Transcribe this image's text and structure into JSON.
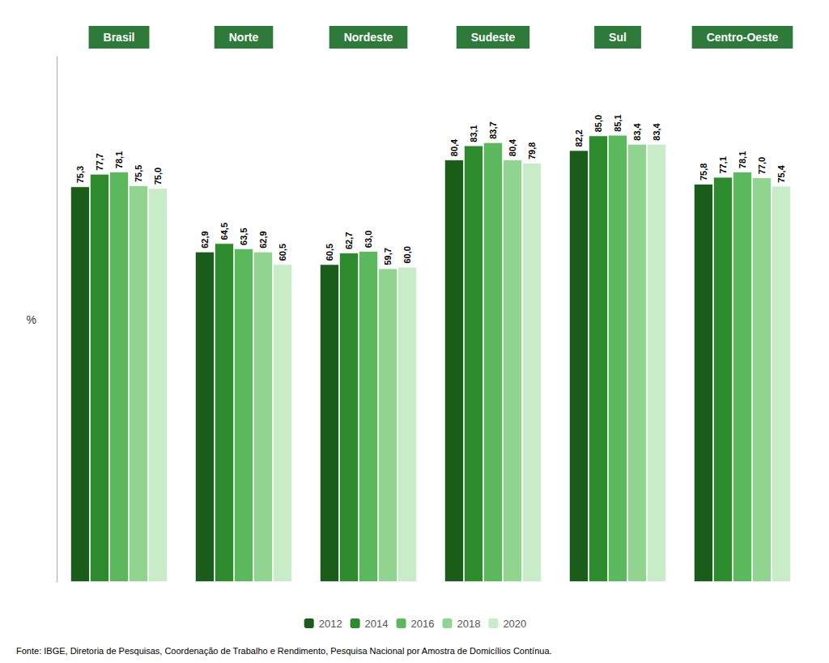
{
  "chart_data": {
    "type": "bar",
    "categories": [
      "Brasil",
      "Norte",
      "Nordeste",
      "Sudeste",
      "Sul",
      "Centro-Oeste"
    ],
    "series": [
      {
        "name": "2012",
        "color": "#1a5c1a",
        "values": [
          75.3,
          62.9,
          60.5,
          80.4,
          82.2,
          75.8
        ],
        "value_labels": [
          "75,3",
          "62,9",
          "60,5",
          "80,4",
          "82,2",
          "75,8"
        ]
      },
      {
        "name": "2014",
        "color": "#2d8b2d",
        "values": [
          77.7,
          64.5,
          62.7,
          83.1,
          85.0,
          77.1
        ],
        "value_labels": [
          "77,7",
          "64,5",
          "62,7",
          "83,1",
          "85,0",
          "77,1"
        ]
      },
      {
        "name": "2016",
        "color": "#5cb85c",
        "values": [
          78.1,
          63.5,
          63.0,
          83.7,
          85.1,
          78.1
        ],
        "value_labels": [
          "78,1",
          "63,5",
          "63,0",
          "83,7",
          "85,1",
          "78,1"
        ]
      },
      {
        "name": "2018",
        "color": "#90d490",
        "values": [
          75.5,
          62.9,
          59.7,
          80.4,
          83.4,
          77.0
        ],
        "value_labels": [
          "75,5",
          "62,9",
          "59,7",
          "80,4",
          "83,4",
          "77,0"
        ]
      },
      {
        "name": "2020",
        "color": "#c8ecc8",
        "values": [
          75.0,
          60.5,
          60.0,
          79.8,
          83.4,
          75.4
        ],
        "value_labels": [
          "75,0",
          "60,5",
          "60,0",
          "79,8",
          "83,4",
          "75,4"
        ]
      }
    ],
    "ylabel": "%",
    "ylim": [
      0,
      100
    ],
    "yticks": [],
    "tick_labels": "x",
    "grid": false,
    "legend": "bottom",
    "data_labels": true,
    "annotations": [
      "Fonte: IBGE, Diretoria de Pesquisas, Coordenação de Trabalho e Rendimento, Pesquisa Nacional por Amostra de Domicílios Contínua."
    ]
  }
}
